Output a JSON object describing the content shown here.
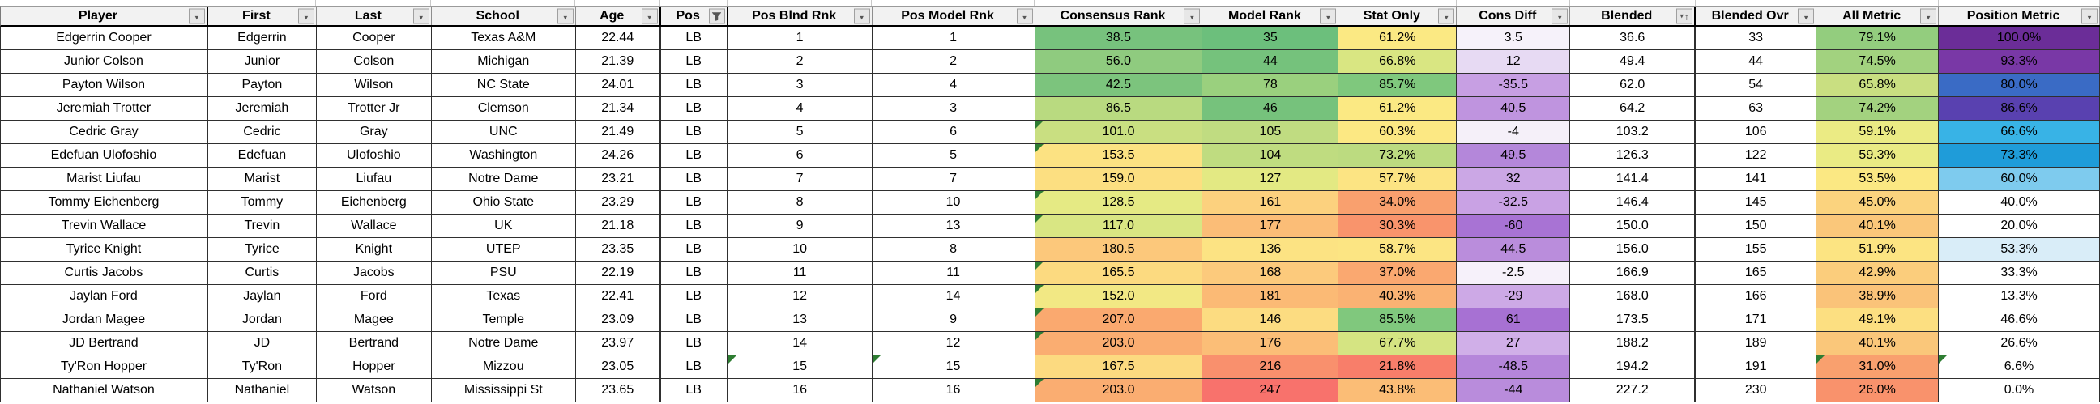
{
  "sheet": {
    "header": {
      "columns": [
        {
          "key": "player",
          "label": "Player",
          "icon": "dropdown-icon"
        },
        {
          "key": "first",
          "label": "First",
          "icon": "dropdown-icon"
        },
        {
          "key": "last",
          "label": "Last",
          "icon": "dropdown-icon"
        },
        {
          "key": "school",
          "label": "School",
          "icon": "dropdown-icon"
        },
        {
          "key": "age",
          "label": "Age",
          "icon": "dropdown-icon"
        },
        {
          "key": "pos",
          "label": "Pos",
          "icon": "filter-funnel-icon"
        },
        {
          "key": "pos_blnd_rnk",
          "label": "Pos Blnd Rnk",
          "icon": "dropdown-icon"
        },
        {
          "key": "pos_model_rnk",
          "label": "Pos Model Rnk",
          "icon": "dropdown-icon"
        },
        {
          "key": "consensus_rank",
          "label": "Consensus Rank",
          "icon": "dropdown-icon"
        },
        {
          "key": "model_rank",
          "label": "Model Rank",
          "icon": "dropdown-icon"
        },
        {
          "key": "stat_only",
          "label": "Stat Only",
          "icon": "dropdown-icon"
        },
        {
          "key": "cons_diff",
          "label": "Cons Diff",
          "icon": "dropdown-icon"
        },
        {
          "key": "blended",
          "label": "Blended",
          "icon": "sort-asc-dropdown-icon"
        },
        {
          "key": "blended_ovr",
          "label": "Blended Ovr",
          "icon": "dropdown-icon"
        },
        {
          "key": "all_metric",
          "label": "All Metric",
          "icon": "dropdown-icon"
        },
        {
          "key": "position_metric",
          "label": "Position Metric",
          "icon": "dropdown-icon"
        }
      ]
    },
    "rows": [
      {
        "player": "Edgerrin Cooper",
        "first": "Edgerrin",
        "last": "Cooper",
        "school": "Texas A&M",
        "age": "22.44",
        "pos": "LB",
        "pos_blnd_rnk": "1",
        "pos_model_rnk": "1",
        "consensus_rank": "38.5",
        "model_rank": "35",
        "stat_only": "61.2%",
        "cons_diff": "3.5",
        "blended": "36.6",
        "blended_ovr": "33",
        "all_metric": "79.1%",
        "position_metric": "100.0%"
      },
      {
        "player": "Junior Colson",
        "first": "Junior",
        "last": "Colson",
        "school": "Michigan",
        "age": "21.39",
        "pos": "LB",
        "pos_blnd_rnk": "2",
        "pos_model_rnk": "2",
        "consensus_rank": "56.0",
        "model_rank": "44",
        "stat_only": "66.8%",
        "cons_diff": "12",
        "blended": "49.4",
        "blended_ovr": "44",
        "all_metric": "74.5%",
        "position_metric": "93.3%"
      },
      {
        "player": "Payton Wilson",
        "first": "Payton",
        "last": "Wilson",
        "school": "NC State",
        "age": "24.01",
        "pos": "LB",
        "pos_blnd_rnk": "3",
        "pos_model_rnk": "4",
        "consensus_rank": "42.5",
        "model_rank": "78",
        "stat_only": "85.7%",
        "cons_diff": "-35.5",
        "blended": "62.0",
        "blended_ovr": "54",
        "all_metric": "65.8%",
        "position_metric": "80.0%"
      },
      {
        "player": "Jeremiah Trotter",
        "first": "Jeremiah",
        "last": "Trotter Jr",
        "school": "Clemson",
        "age": "21.34",
        "pos": "LB",
        "pos_blnd_rnk": "4",
        "pos_model_rnk": "3",
        "consensus_rank": "86.5",
        "model_rank": "46",
        "stat_only": "61.2%",
        "cons_diff": "40.5",
        "blended": "64.2",
        "blended_ovr": "63",
        "all_metric": "74.2%",
        "position_metric": "86.6%"
      },
      {
        "player": "Cedric Gray",
        "first": "Cedric",
        "last": "Gray",
        "school": "UNC",
        "age": "21.49",
        "pos": "LB",
        "pos_blnd_rnk": "5",
        "pos_model_rnk": "6",
        "consensus_rank": "101.0",
        "model_rank": "105",
        "stat_only": "60.3%",
        "cons_diff": "-4",
        "blended": "103.2",
        "blended_ovr": "106",
        "all_metric": "59.1%",
        "position_metric": "66.6%"
      },
      {
        "player": "Edefuan Ulofoshio",
        "first": "Edefuan",
        "last": "Ulofoshio",
        "school": "Washington",
        "age": "24.26",
        "pos": "LB",
        "pos_blnd_rnk": "6",
        "pos_model_rnk": "5",
        "consensus_rank": "153.5",
        "model_rank": "104",
        "stat_only": "73.2%",
        "cons_diff": "49.5",
        "blended": "126.3",
        "blended_ovr": "122",
        "all_metric": "59.3%",
        "position_metric": "73.3%"
      },
      {
        "player": "Marist Liufau",
        "first": "Marist",
        "last": "Liufau",
        "school": "Notre Dame",
        "age": "23.21",
        "pos": "LB",
        "pos_blnd_rnk": "7",
        "pos_model_rnk": "7",
        "consensus_rank": "159.0",
        "model_rank": "127",
        "stat_only": "57.7%",
        "cons_diff": "32",
        "blended": "141.4",
        "blended_ovr": "141",
        "all_metric": "53.5%",
        "position_metric": "60.0%"
      },
      {
        "player": "Tommy Eichenberg",
        "first": "Tommy",
        "last": "Eichenberg",
        "school": "Ohio State",
        "age": "23.29",
        "pos": "LB",
        "pos_blnd_rnk": "8",
        "pos_model_rnk": "10",
        "consensus_rank": "128.5",
        "model_rank": "161",
        "stat_only": "34.0%",
        "cons_diff": "-32.5",
        "blended": "146.4",
        "blended_ovr": "145",
        "all_metric": "45.0%",
        "position_metric": "40.0%"
      },
      {
        "player": "Trevin Wallace",
        "first": "Trevin",
        "last": "Wallace",
        "school": "UK",
        "age": "21.18",
        "pos": "LB",
        "pos_blnd_rnk": "9",
        "pos_model_rnk": "13",
        "consensus_rank": "117.0",
        "model_rank": "177",
        "stat_only": "30.3%",
        "cons_diff": "-60",
        "blended": "150.0",
        "blended_ovr": "150",
        "all_metric": "40.1%",
        "position_metric": "20.0%"
      },
      {
        "player": "Tyrice Knight",
        "first": "Tyrice",
        "last": "Knight",
        "school": "UTEP",
        "age": "23.35",
        "pos": "LB",
        "pos_blnd_rnk": "10",
        "pos_model_rnk": "8",
        "consensus_rank": "180.5",
        "model_rank": "136",
        "stat_only": "58.7%",
        "cons_diff": "44.5",
        "blended": "156.0",
        "blended_ovr": "155",
        "all_metric": "51.9%",
        "position_metric": "53.3%"
      },
      {
        "player": "Curtis Jacobs",
        "first": "Curtis",
        "last": "Jacobs",
        "school": "PSU",
        "age": "22.19",
        "pos": "LB",
        "pos_blnd_rnk": "11",
        "pos_model_rnk": "11",
        "consensus_rank": "165.5",
        "model_rank": "168",
        "stat_only": "37.0%",
        "cons_diff": "-2.5",
        "blended": "166.9",
        "blended_ovr": "165",
        "all_metric": "42.9%",
        "position_metric": "33.3%"
      },
      {
        "player": "Jaylan Ford",
        "first": "Jaylan",
        "last": "Ford",
        "school": "Texas",
        "age": "22.41",
        "pos": "LB",
        "pos_blnd_rnk": "12",
        "pos_model_rnk": "14",
        "consensus_rank": "152.0",
        "model_rank": "181",
        "stat_only": "40.3%",
        "cons_diff": "-29",
        "blended": "168.0",
        "blended_ovr": "166",
        "all_metric": "38.9%",
        "position_metric": "13.3%"
      },
      {
        "player": "Jordan Magee",
        "first": "Jordan",
        "last": "Magee",
        "school": "Temple",
        "age": "23.09",
        "pos": "LB",
        "pos_blnd_rnk": "13",
        "pos_model_rnk": "9",
        "consensus_rank": "207.0",
        "model_rank": "146",
        "stat_only": "85.5%",
        "cons_diff": "61",
        "blended": "173.5",
        "blended_ovr": "171",
        "all_metric": "49.1%",
        "position_metric": "46.6%"
      },
      {
        "player": "JD Bertrand",
        "first": "JD",
        "last": "Bertrand",
        "school": "Notre Dame",
        "age": "23.97",
        "pos": "LB",
        "pos_blnd_rnk": "14",
        "pos_model_rnk": "12",
        "consensus_rank": "203.0",
        "model_rank": "176",
        "stat_only": "67.7%",
        "cons_diff": "27",
        "blended": "188.2",
        "blended_ovr": "189",
        "all_metric": "40.1%",
        "position_metric": "26.6%"
      },
      {
        "player": "Ty'Ron Hopper",
        "first": "Ty'Ron",
        "last": "Hopper",
        "school": "Mizzou",
        "age": "23.05",
        "pos": "LB",
        "pos_blnd_rnk": "15",
        "pos_model_rnk": "15",
        "consensus_rank": "167.5",
        "model_rank": "216",
        "stat_only": "21.8%",
        "cons_diff": "-48.5",
        "blended": "194.2",
        "blended_ovr": "191",
        "all_metric": "31.0%",
        "position_metric": "6.6%"
      },
      {
        "player": "Nathaniel Watson",
        "first": "Nathaniel",
        "last": "Watson",
        "school": "Mississippi St",
        "age": "23.65",
        "pos": "LB",
        "pos_blnd_rnk": "16",
        "pos_model_rnk": "16",
        "consensus_rank": "203.0",
        "model_rank": "247",
        "stat_only": "43.8%",
        "cons_diff": "-44",
        "blended": "227.2",
        "blended_ovr": "230",
        "all_metric": "26.0%",
        "position_metric": "0.0%"
      }
    ],
    "cell_colors": {
      "consensus_rank": [
        "#77C27D",
        "#8FCB7F",
        "#7CC47D",
        "#B9DA80",
        "#C9DF81",
        "#FCE282",
        "#FCDF81",
        "#E5EA84",
        "#D9E683",
        "#FCC87B",
        "#FCDA80",
        "#F2E884",
        "#FAA96F",
        "#FAAD71",
        "#FCDA80",
        "#FAAD71"
      ],
      "model_rank": [
        "#6CBF7C",
        "#75C27C",
        "#9AD07E",
        "#76C27C",
        "#C0DC81",
        "#BFDC80",
        "#E3E983",
        "#FCD17E",
        "#FBBD77",
        "#FCE383",
        "#FCCA7C",
        "#FBBA75",
        "#FCDC81",
        "#FBBE77",
        "#F9906D",
        "#F8726C"
      ],
      "stat_only": [
        "#FBE983",
        "#D9E682",
        "#7FC87D",
        "#FBE983",
        "#FCE883",
        "#BCDB80",
        "#FCE483",
        "#F9A06E",
        "#F9946C",
        "#FCE583",
        "#FAA870",
        "#FAB273",
        "#80C87D",
        "#D5E482",
        "#F87E6A",
        "#FBBD76"
      ],
      "cons_diff": [
        "#F6F2FA",
        "#E7DAF3",
        "#C79FE3",
        "#BF94DF",
        "#F5F0F9",
        "#B487DA",
        "#CBA7E5",
        "#C9A2E4",
        "#A873D4",
        "#BA8DDC",
        "#F6F1FA",
        "#CDA9E6",
        "#A771D3",
        "#D0AFE8",
        "#B586DA",
        "#B98CDC"
      ],
      "all_metric": [
        "#93CD7E",
        "#A2D27F",
        "#C9DF81",
        "#A3D27F",
        "#EBEB84",
        "#EAEB84",
        "#FBE883",
        "#FBD37E",
        "#FAC77A",
        "#FCE482",
        "#FBCD7C",
        "#FAC379",
        "#FCDF81",
        "#FAC77A",
        "#F9A06E",
        "#F9926C"
      ],
      "position_metric": [
        "#6B2D98",
        "#7938A6",
        "#3A6BC5",
        "#5941B0",
        "#38B3E6",
        "#1F9CD9",
        "#7ECBEE",
        "#FFFFFF",
        "#FFFFFF",
        "#D9EDF8",
        "#FFFFFF",
        "#FFFFFF",
        "#FFFFFF",
        "#FFFFFF",
        "#FFFFFF",
        "#FFFFFF"
      ]
    },
    "error_indicator_color": "#2E7D32",
    "error_flags": {
      "pos_blnd_rnk": [
        15
      ],
      "pos_model_rnk": [
        15
      ],
      "consensus_rank": [
        5,
        6,
        8,
        9,
        11,
        12,
        13,
        14,
        16
      ],
      "all_metric": [
        15
      ],
      "position_metric": [
        15
      ]
    }
  }
}
